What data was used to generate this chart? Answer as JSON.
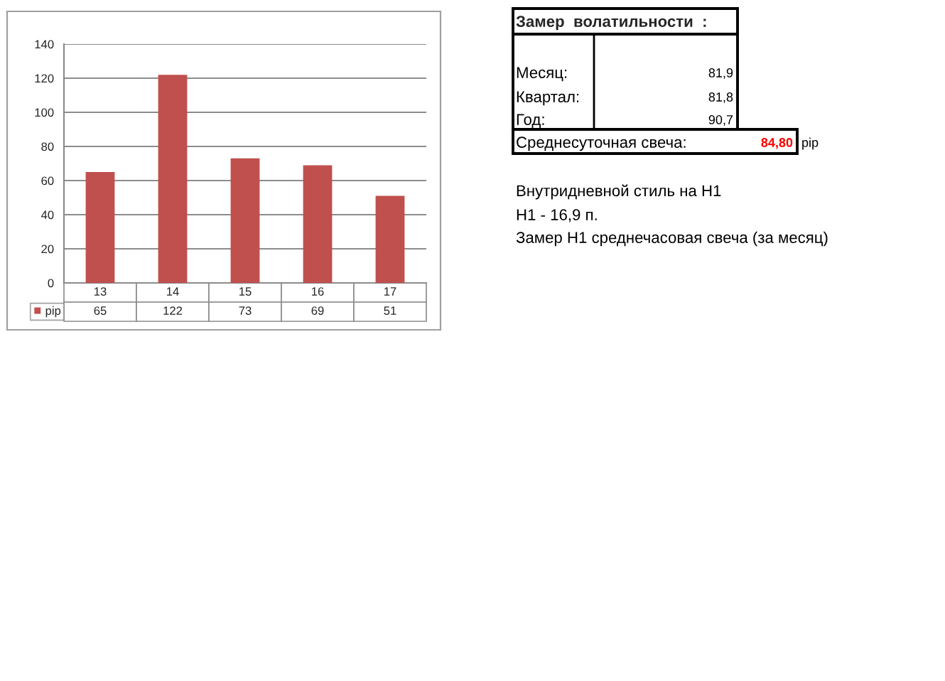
{
  "chart_data": [
    {
      "type": "bar",
      "categories": [
        "13",
        "14",
        "15",
        "16",
        "17"
      ],
      "series": [
        {
          "name": "pip",
          "color": "#c0504d",
          "values": [
            65,
            122,
            73,
            69,
            51
          ]
        }
      ],
      "ylim": [
        0,
        140
      ],
      "yticks": [
        0,
        20,
        40,
        60,
        80,
        100,
        120,
        140
      ],
      "grid": "y",
      "data_labels": true,
      "legend": "bottom left"
    },
    {
      "type": "other",
      "title": "Замер  волатильности  :",
      "annotations": [
        "Месяц:",
        "81,9",
        "Квартал:",
        "81,8",
        "Год:",
        "90,7",
        "Среднесуточная свеча:",
        "84,80",
        "pip",
        "Внутридневной стиль на H1",
        "H1 - 16,9 п.",
        "Замер H1 среднечасовая свеча (за месяц)"
      ]
    }
  ]
}
